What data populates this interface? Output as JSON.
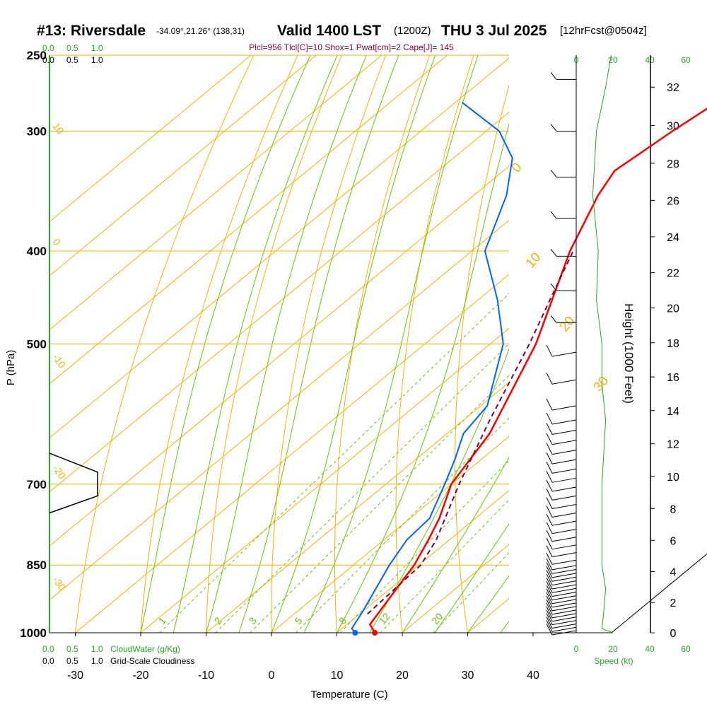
{
  "header": {
    "station": "#13: Riversdale",
    "coords": "-34.09°,21.26° (138,31)",
    "valid": "Valid 1400 LST",
    "zulu": "(1200Z)",
    "date": "THU 3 Jul 2025",
    "fcst": "[12hrFcst@0504z]"
  },
  "indices": "Plcl=956 Tlcl[C]=10 Shox=1 Pwat[cm]=2 Cape[J]= 145",
  "colors": {
    "temperature": "#ff0000",
    "dewpoint": "#0064ff",
    "parcel": "#800040",
    "isotherm": "#f0b400",
    "mixing_ratio": "#64c800",
    "cloud_scale": "#22aa22",
    "index_text": "#990033"
  },
  "cloud_scale": {
    "top_green": [
      "0.0",
      "0.5",
      "1.0"
    ],
    "top_black": [
      "0.0",
      "0.5",
      "1.0"
    ],
    "bottom_green": [
      "0.0",
      "0.5",
      "1.0"
    ],
    "bottom_green_label": "CloudWater (g/Kg)",
    "bottom_black": [
      "0.0",
      "0.5",
      "1.0"
    ],
    "bottom_black_label": "Grid-Scale Cloudiness"
  },
  "speed_scale": {
    "top": [
      "0",
      "20",
      "40",
      "60"
    ],
    "bottom": [
      "0",
      "20",
      "40",
      "60"
    ],
    "label": "Speed (kt)"
  },
  "chart_data": {
    "type": "line",
    "title": "#13: Riversdale Valid 1400 LST (1200Z) THU 3 Jul 2025",
    "xlabel": "Temperature (C)",
    "ylabel": "P (hPa)",
    "y2label": "Height (1000 Feet)",
    "y_scale": "log",
    "xlim_at_1000hPa": [
      -34,
      45
    ],
    "ylim": [
      1000,
      250
    ],
    "x_ticks": [
      -30,
      -20,
      -10,
      0,
      10,
      20,
      30,
      40
    ],
    "pressure_ticks": [
      250,
      300,
      400,
      500,
      700,
      850,
      1000
    ],
    "height_ticks": [
      0,
      2,
      4,
      6,
      8,
      10,
      12,
      14,
      16,
      18,
      20,
      22,
      24,
      26,
      28,
      30,
      32
    ],
    "isotherm_labels": [
      "10",
      "0",
      "-10",
      "-20",
      "-30",
      "0",
      "10",
      "20",
      "30"
    ],
    "mixing_ratio_labels": [
      "1",
      "2",
      "3",
      "5",
      "8",
      "12",
      "20"
    ],
    "series": [
      {
        "name": "Temperature",
        "points": [
          [
            1000,
            15.8
          ],
          [
            980,
            13.5
          ],
          [
            850,
            9.3
          ],
          [
            800,
            6.8
          ],
          [
            760,
            4.5
          ],
          [
            700,
            0
          ],
          [
            620,
            -3.5
          ],
          [
            500,
            -13
          ],
          [
            400,
            -25
          ],
          [
            350,
            -31
          ],
          [
            330,
            -33
          ],
          [
            300,
            -31.5
          ],
          [
            260,
            -28.5
          ]
        ]
      },
      {
        "name": "Dewpoint",
        "points": [
          [
            1000,
            12.8
          ],
          [
            990,
            11.5
          ],
          [
            950,
            10
          ],
          [
            850,
            5.5
          ],
          [
            800,
            3.5
          ],
          [
            760,
            3
          ],
          [
            700,
            -1
          ],
          [
            660,
            -4
          ],
          [
            620,
            -7.5
          ],
          [
            580,
            -9
          ],
          [
            500,
            -18
          ],
          [
            450,
            -27
          ],
          [
            400,
            -38
          ],
          [
            350,
            -45
          ],
          [
            320,
            -51
          ],
          [
            300,
            -58
          ],
          [
            280,
            -69
          ]
        ]
      },
      {
        "name": "Parcel",
        "points": [
          [
            956,
            11.2
          ],
          [
            850,
            10.3
          ],
          [
            800,
            8
          ],
          [
            700,
            1.2
          ],
          [
            600,
            -6
          ],
          [
            500,
            -14
          ],
          [
            450,
            -19
          ],
          [
            400,
            -24.5
          ]
        ]
      }
    ],
    "cloudiness_profile": [
      [
        650,
        0
      ],
      [
        680,
        0.85
      ],
      [
        720,
        0.85
      ],
      [
        750,
        0
      ]
    ],
    "wind_speed_profile_kt": [
      [
        1000,
        20
      ],
      [
        990,
        14
      ],
      [
        950,
        15
      ],
      [
        900,
        16
      ],
      [
        850,
        14
      ],
      [
        800,
        14
      ],
      [
        750,
        14
      ],
      [
        700,
        14
      ],
      [
        650,
        15
      ],
      [
        600,
        16
      ],
      [
        550,
        14
      ],
      [
        500,
        14
      ],
      [
        450,
        11
      ],
      [
        400,
        12
      ],
      [
        350,
        9
      ],
      [
        300,
        11
      ],
      [
        270,
        16
      ],
      [
        250,
        19
      ]
    ],
    "tropopause_line": [
      [
        250,
        36
      ],
      [
        400,
        36
      ],
      [
        500,
        44
      ],
      [
        650,
        52
      ],
      [
        1000,
        52
      ]
    ]
  }
}
